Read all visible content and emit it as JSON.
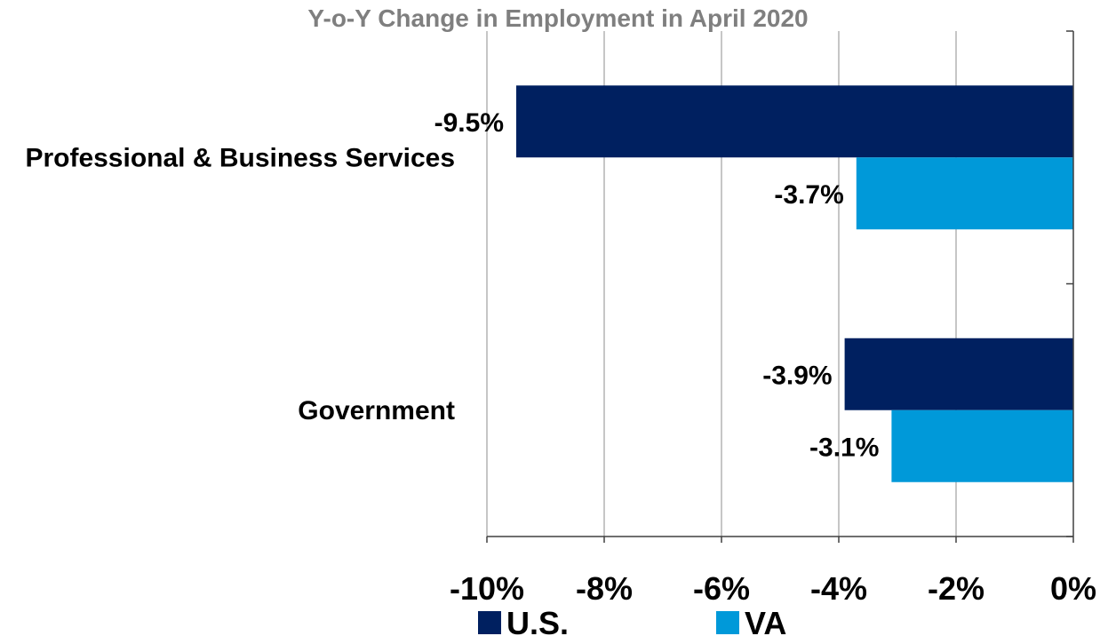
{
  "chart_data": {
    "type": "bar",
    "orientation": "horizontal",
    "title": "Y-o-Y Change in Employment in April 2020",
    "categories": [
      "Professional & Business Services",
      "Government"
    ],
    "series": [
      {
        "name": "U.S.",
        "color": "#002060",
        "values": [
          -9.5,
          -3.9
        ],
        "labels": [
          "-9.5%",
          "-3.9%"
        ]
      },
      {
        "name": "VA",
        "color": "#0099D9",
        "values": [
          -3.7,
          -3.1
        ],
        "labels": [
          "-3.7%",
          "-3.1%"
        ]
      }
    ],
    "xlim": [
      -10,
      0
    ],
    "xticks": [
      -10,
      -8,
      -6,
      -4,
      -2,
      0
    ],
    "xtick_labels": [
      "-10%",
      "-8%",
      "-6%",
      "-4%",
      "-2%",
      "0%"
    ],
    "xlabel": "",
    "ylabel": "",
    "grid": true,
    "legend_position": "bottom"
  }
}
